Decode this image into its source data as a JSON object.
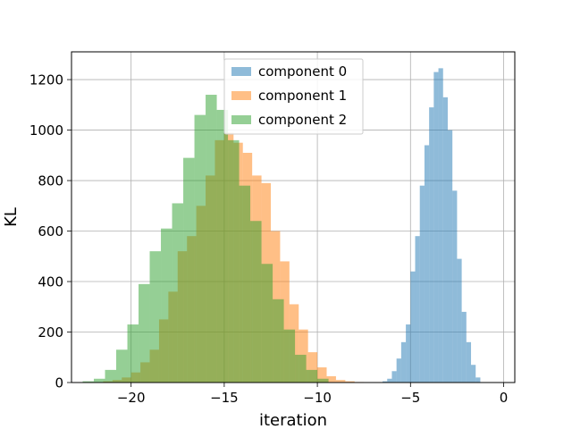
{
  "chart_data": {
    "type": "bar",
    "subtype": "histogram",
    "title": "",
    "xlabel": "iteration",
    "ylabel": "KL",
    "xlim": [
      -23.2,
      0.6
    ],
    "ylim": [
      0,
      1310
    ],
    "x_ticks": [
      -20,
      -15,
      -10,
      -5,
      0
    ],
    "x_tick_labels": [
      "−20",
      "−15",
      "−10",
      "−5",
      "0"
    ],
    "y_ticks": [
      0,
      200,
      400,
      600,
      800,
      1000,
      1200
    ],
    "y_tick_labels": [
      "0",
      "200",
      "400",
      "600",
      "800",
      "1000",
      "1200"
    ],
    "grid": true,
    "legend_position": "top-center",
    "series": [
      {
        "name": "component 0",
        "color": "#1f77b4",
        "opacity": 0.5,
        "bin_edges": [
          -6.5,
          -6.25,
          -6.0,
          -5.75,
          -5.5,
          -5.25,
          -5.0,
          -4.75,
          -4.5,
          -4.25,
          -4.0,
          -3.75,
          -3.5,
          -3.25,
          -3.0,
          -2.75,
          -2.5,
          -2.25,
          -2.0,
          -1.75,
          -1.5,
          -1.25
        ],
        "counts": [
          5,
          15,
          45,
          95,
          160,
          230,
          440,
          580,
          780,
          940,
          1090,
          1230,
          1245,
          1130,
          1000,
          760,
          490,
          280,
          160,
          70,
          20
        ]
      },
      {
        "name": "component 1",
        "color": "#ff7f0e",
        "opacity": 0.5,
        "bin_edges": [
          -21.5,
          -21.0,
          -20.5,
          -20.0,
          -19.5,
          -19.0,
          -18.5,
          -18.0,
          -17.5,
          -17.0,
          -16.5,
          -16.0,
          -15.5,
          -15.0,
          -14.5,
          -14.0,
          -13.5,
          -13.0,
          -12.5,
          -12.0,
          -11.5,
          -11.0,
          -10.5,
          -10.0,
          -9.5,
          -9.0,
          -8.5,
          -8.0,
          -7.5
        ],
        "counts": [
          5,
          10,
          20,
          40,
          80,
          130,
          250,
          360,
          520,
          580,
          700,
          820,
          960,
          990,
          950,
          910,
          820,
          790,
          600,
          480,
          310,
          210,
          120,
          60,
          25,
          10,
          5,
          2
        ]
      },
      {
        "name": "component 2",
        "color": "#2ca02c",
        "opacity": 0.5,
        "bin_edges": [
          -22.6,
          -22.0,
          -21.4,
          -20.8,
          -20.2,
          -19.6,
          -19.0,
          -18.4,
          -17.8,
          -17.2,
          -16.6,
          -16.0,
          -15.4,
          -14.8,
          -14.2,
          -13.6,
          -13.0,
          -12.4,
          -11.8,
          -11.2,
          -10.6,
          -10.0,
          -9.4
        ],
        "counts": [
          5,
          15,
          50,
          130,
          230,
          390,
          520,
          610,
          710,
          890,
          1060,
          1140,
          1080,
          960,
          780,
          640,
          470,
          330,
          210,
          110,
          50,
          15
        ]
      }
    ]
  }
}
